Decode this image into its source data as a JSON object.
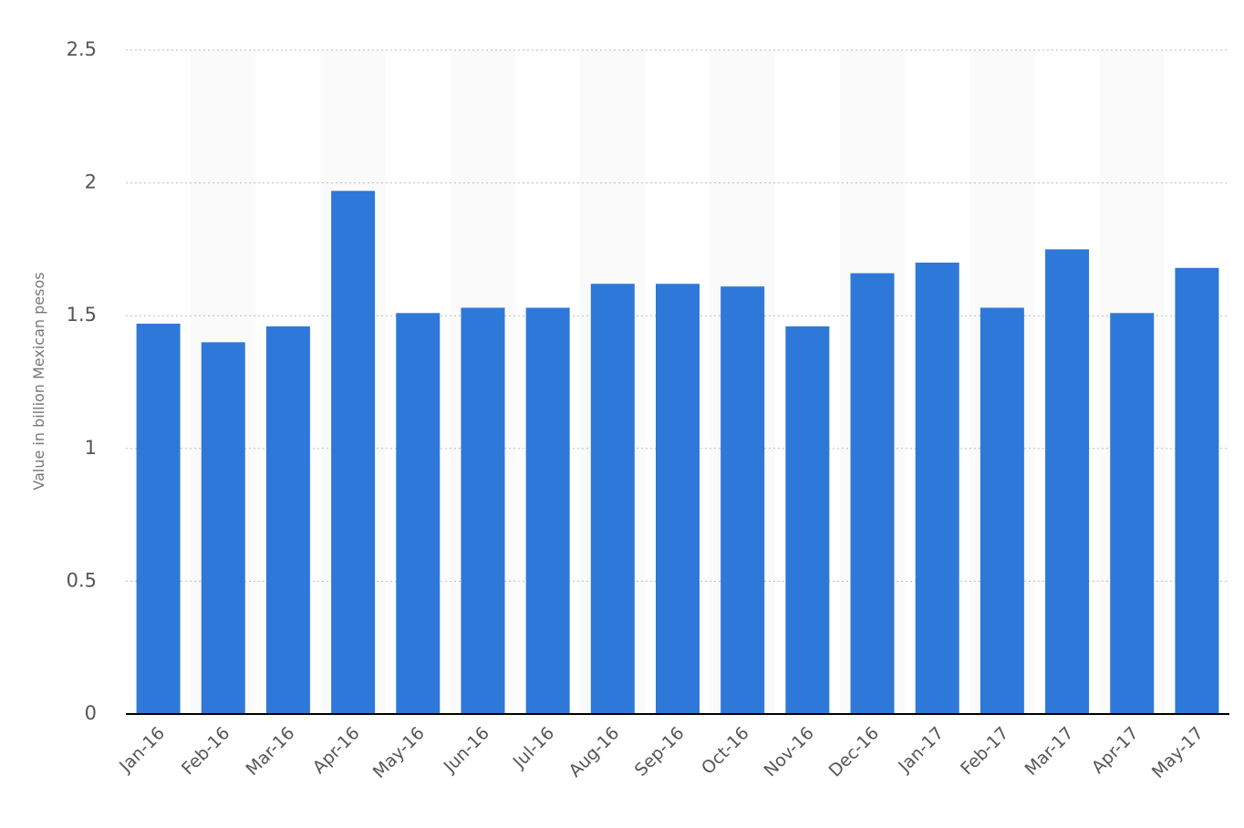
{
  "chart_data": {
    "type": "bar",
    "y_label": "Value in billion Mexican pesos",
    "categories": [
      "Jan-16",
      "Feb-16",
      "Mar-16",
      "Apr-16",
      "May-16",
      "Jun-16",
      "Jul-16",
      "Aug-16",
      "Sep-16",
      "Oct-16",
      "Nov-16",
      "Dec-16",
      "Jan-17",
      "Feb-17",
      "Mar-17",
      "Apr-17",
      "May-17"
    ],
    "values": [
      1.47,
      1.4,
      1.46,
      1.97,
      1.51,
      1.53,
      1.53,
      1.62,
      1.62,
      1.61,
      1.46,
      1.66,
      1.7,
      1.53,
      1.75,
      1.51,
      1.68
    ],
    "color": "#2e78d9",
    "ylim": [
      0,
      2.5
    ],
    "yticks": [
      0,
      0.5,
      1,
      1.5,
      2,
      2.5
    ],
    "grid": true
  }
}
